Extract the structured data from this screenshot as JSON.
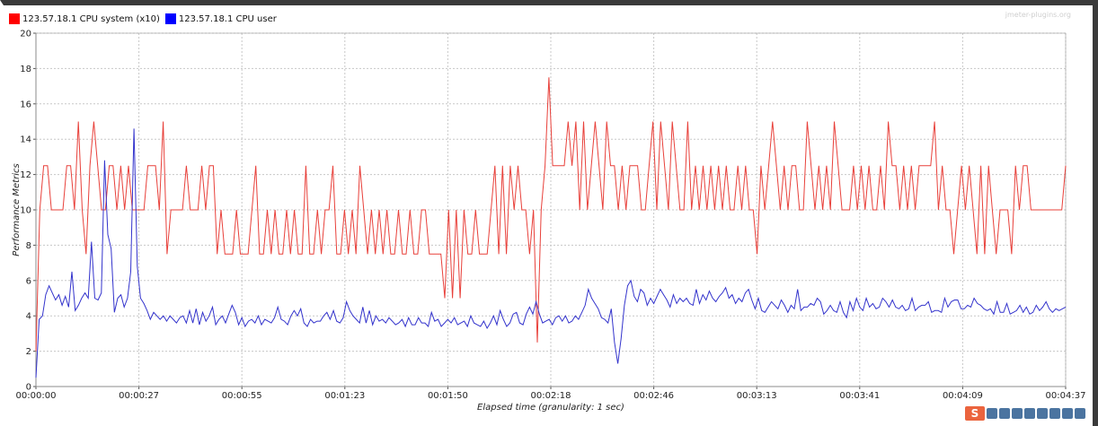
{
  "legend": {
    "items": [
      {
        "label": "123.57.18.1 CPU system (x10)",
        "color": "#ff0000"
      },
      {
        "label": "123.57.18.1 CPU user",
        "color": "#0000ff"
      }
    ]
  },
  "watermark": "jmeter-plugins.org",
  "toolbar": {
    "logo_text": "S",
    "icons": [
      "language-icon",
      "moon-icon",
      "comma-icon",
      "mic-icon",
      "keyboard-icon",
      "shirt-icon",
      "person-icon",
      "grid-icon"
    ]
  },
  "chart_data": {
    "type": "line",
    "xlabel": "Elapsed time (granularity: 1 sec)",
    "ylabel": "Performance Metrics",
    "ylim": [
      0,
      20
    ],
    "yticks": [
      0,
      2,
      4,
      6,
      8,
      10,
      12,
      14,
      16,
      18,
      20
    ],
    "xlim": [
      "00:00:00",
      "00:04:37"
    ],
    "xticks": [
      "00:00:00",
      "00:00:27",
      "00:00:55",
      "00:01:23",
      "00:01:50",
      "00:02:18",
      "00:02:46",
      "00:03:13",
      "00:03:41",
      "00:04:09",
      "00:04:37"
    ],
    "grid": true,
    "legend_position": "top-left",
    "series": [
      {
        "name": "123.57.18.1 CPU system (x10)",
        "color": "#e8403a",
        "values": [
          2.0,
          10.0,
          12.5,
          12.5,
          10.0,
          10.0,
          10.0,
          10.0,
          12.5,
          12.5,
          10.0,
          15.0,
          10.0,
          7.5,
          12.5,
          15.0,
          12.5,
          10.0,
          10.0,
          12.5,
          12.5,
          10.0,
          12.5,
          10.0,
          12.5,
          10.0,
          10.0,
          10.0,
          10.0,
          12.5,
          12.5,
          12.5,
          10.0,
          15.0,
          7.5,
          10.0,
          10.0,
          10.0,
          10.0,
          12.5,
          10.0,
          10.0,
          10.0,
          12.5,
          10.0,
          12.5,
          12.5,
          7.5,
          10.0,
          7.5,
          7.5,
          7.5,
          10.0,
          7.5,
          7.5,
          7.5,
          10.0,
          12.5,
          7.5,
          7.5,
          10.0,
          7.5,
          10.0,
          7.5,
          7.5,
          10.0,
          7.5,
          10.0,
          7.5,
          7.5,
          12.5,
          7.5,
          7.5,
          10.0,
          7.5,
          10.0,
          10.0,
          12.5,
          7.5,
          7.5,
          10.0,
          7.5,
          10.0,
          7.5,
          12.5,
          10.0,
          7.5,
          10.0,
          7.5,
          10.0,
          7.5,
          10.0,
          7.5,
          7.5,
          10.0,
          7.5,
          7.5,
          10.0,
          7.5,
          7.5,
          10.0,
          10.0,
          7.5,
          7.5,
          7.5,
          7.5,
          5.0,
          10.0,
          5.0,
          10.0,
          5.0,
          10.0,
          7.5,
          7.5,
          10.0,
          7.5,
          7.5,
          7.5,
          10.0,
          12.5,
          7.5,
          12.5,
          7.5,
          12.5,
          10.0,
          12.5,
          10.0,
          10.0,
          7.5,
          10.0,
          2.5,
          10.0,
          12.5,
          17.5,
          12.5,
          12.5,
          12.5,
          12.5,
          15.0,
          12.5,
          15.0,
          10.0,
          15.0,
          10.0,
          12.5,
          15.0,
          12.5,
          10.0,
          15.0,
          12.5,
          12.5,
          10.0,
          12.5,
          10.0,
          12.5,
          12.5,
          12.5,
          10.0,
          10.0,
          12.5,
          15.0,
          10.0,
          15.0,
          12.5,
          10.0,
          15.0,
          12.5,
          10.0,
          10.0,
          15.0,
          10.0,
          12.5,
          10.0,
          12.5,
          10.0,
          12.5,
          10.0,
          12.5,
          10.0,
          12.5,
          10.0,
          10.0,
          12.5,
          10.0,
          12.5,
          10.0,
          10.0,
          7.5,
          12.5,
          10.0,
          12.5,
          15.0,
          12.5,
          10.0,
          12.5,
          10.0,
          12.5,
          12.5,
          10.0,
          10.0,
          15.0,
          12.5,
          10.0,
          12.5,
          10.0,
          12.5,
          10.0,
          15.0,
          12.5,
          10.0,
          10.0,
          10.0,
          12.5,
          10.0,
          12.5,
          10.0,
          12.5,
          10.0,
          10.0,
          12.5,
          10.0,
          15.0,
          12.5,
          12.5,
          10.0,
          12.5,
          10.0,
          12.5,
          10.0,
          12.5,
          12.5,
          12.5,
          12.5,
          15.0,
          10.0,
          12.5,
          10.0,
          10.0,
          7.5,
          10.0,
          12.5,
          10.0,
          12.5,
          10.0,
          7.5,
          12.5,
          7.5,
          12.5,
          10.0,
          7.5,
          10.0,
          10.0,
          10.0,
          7.5,
          12.5,
          10.0,
          12.5,
          12.5,
          10.0,
          10.0,
          10.0,
          10.0,
          10.0,
          10.0,
          10.0,
          10.0,
          10.0,
          12.5
        ]
      },
      {
        "name": "123.57.18.1 CPU user",
        "color": "#3333cc",
        "values": [
          0.5,
          3.8,
          4.0,
          5.2,
          5.7,
          5.3,
          4.9,
          5.2,
          4.6,
          5.1,
          4.5,
          6.5,
          4.3,
          4.6,
          5.0,
          5.3,
          5.0,
          8.2,
          5.0,
          4.9,
          5.3,
          12.8,
          8.6,
          7.8,
          4.2,
          5.0,
          5.2,
          4.5,
          5.0,
          6.5,
          14.6,
          6.8,
          5.0,
          4.7,
          4.3,
          3.8,
          4.2,
          4.0,
          3.8,
          4.0,
          3.7,
          4.0,
          3.8,
          3.6,
          3.9,
          4.0,
          3.6,
          4.3,
          3.6,
          4.4,
          3.5,
          4.2,
          3.7,
          4.0,
          4.5,
          3.5,
          3.8,
          4.0,
          3.6,
          4.1,
          4.6,
          4.2,
          3.5,
          3.9,
          3.4,
          3.7,
          3.8,
          3.6,
          4.0,
          3.5,
          3.8,
          3.7,
          3.6,
          3.9,
          4.5,
          3.8,
          3.7,
          3.5,
          4.0,
          4.3,
          4.0,
          4.4,
          3.6,
          3.4,
          3.8,
          3.6,
          3.7,
          3.7,
          4.0,
          4.2,
          3.8,
          4.3,
          3.7,
          3.6,
          3.9,
          4.8,
          4.3,
          4.0,
          3.8,
          3.6,
          4.5,
          3.6,
          4.3,
          3.5,
          4.0,
          3.7,
          3.8,
          3.6,
          3.9,
          3.7,
          3.5,
          3.6,
          3.8,
          3.4,
          3.9,
          3.5,
          3.5,
          3.9,
          3.6,
          3.6,
          3.4,
          4.2,
          3.7,
          3.8,
          3.4,
          3.6,
          3.8,
          3.6,
          3.9,
          3.5,
          3.6,
          3.7,
          3.4,
          4.0,
          3.6,
          3.5,
          3.4,
          3.7,
          3.3,
          3.6,
          4.0,
          3.5,
          4.3,
          3.8,
          3.4,
          3.6,
          4.1,
          4.2,
          3.6,
          3.5,
          4.1,
          4.5,
          4.1,
          4.8,
          4.1,
          3.6,
          3.7,
          3.8,
          3.5,
          3.9,
          4.0,
          3.7,
          4.0,
          3.6,
          3.7,
          4.0,
          3.8,
          4.2,
          4.6,
          5.5,
          5.0,
          4.7,
          4.4,
          3.9,
          3.8,
          3.6,
          4.4,
          2.5,
          1.3,
          2.7,
          4.6,
          5.7,
          6.0,
          5.1,
          4.8,
          5.5,
          5.3,
          4.6,
          5.0,
          4.7,
          5.1,
          5.5,
          5.2,
          4.9,
          4.5,
          5.2,
          4.7,
          5.0,
          4.8,
          5.0,
          4.7,
          4.6,
          5.5,
          4.7,
          5.2,
          4.9,
          5.4,
          5.0,
          4.8,
          5.1,
          5.3,
          5.6,
          5.0,
          5.2,
          4.7,
          5.0,
          4.8,
          5.3,
          5.5,
          4.9,
          4.4,
          5.0,
          4.3,
          4.2,
          4.5,
          4.8,
          4.6,
          4.4,
          4.9,
          4.6,
          4.2,
          4.6,
          4.4,
          5.5,
          4.3,
          4.5,
          4.5,
          4.7,
          4.6,
          5.0,
          4.8,
          4.1,
          4.3,
          4.6,
          4.3,
          4.2,
          4.8,
          4.2,
          3.9,
          4.8,
          4.3,
          5.0,
          4.5,
          4.3,
          5.0,
          4.5,
          4.7,
          4.4,
          4.5,
          5.0,
          4.8,
          4.5,
          4.9,
          4.5,
          4.4,
          4.6,
          4.3,
          4.4,
          5.0,
          4.3,
          4.5,
          4.6,
          4.6,
          4.8,
          4.2,
          4.3,
          4.3,
          4.2,
          5.0,
          4.5,
          4.8,
          4.9,
          4.9,
          4.4,
          4.4,
          4.6,
          4.5,
          5.0,
          4.7,
          4.6,
          4.4,
          4.3,
          4.4,
          4.1,
          4.8,
          4.2,
          4.2,
          4.7,
          4.1,
          4.2,
          4.3,
          4.6,
          4.2,
          4.5,
          4.1,
          4.2,
          4.6,
          4.3,
          4.5,
          4.8,
          4.4,
          4.2,
          4.4,
          4.3,
          4.4,
          4.5
        ]
      }
    ]
  }
}
